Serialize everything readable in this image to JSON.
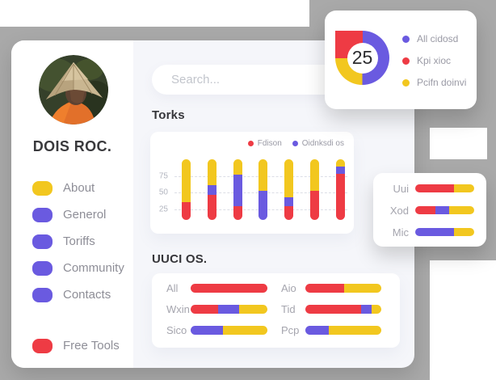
{
  "colors": {
    "red": "#ee3b44",
    "yellow": "#f2c71f",
    "purple": "#6a5ae0",
    "gray_backdrop": "#a9a9a9",
    "main_bg": "#f5f6fa",
    "card_bg": "#ffffff",
    "text_dark": "#36363a",
    "text_gray": "#9a9aa5"
  },
  "sidebar": {
    "profile_name": "DOIS ROC.",
    "avatar_alt": "person wearing conical hat",
    "items": [
      {
        "label": "About",
        "color": "yellow",
        "icon": "blob-icon"
      },
      {
        "label": "Generol",
        "color": "purple",
        "icon": "blob-icon"
      },
      {
        "label": "Toriffs",
        "color": "purple",
        "icon": "blob-icon"
      },
      {
        "label": "Community",
        "color": "purple",
        "icon": "blob-icon"
      },
      {
        "label": "Contacts",
        "color": "purple",
        "icon": "blob-icon"
      }
    ],
    "footer_item": {
      "label": "Free Tools",
      "color": "red",
      "icon": "blob-icon"
    }
  },
  "search": {
    "placeholder": "Search..."
  },
  "sections": {
    "torks_title": "Torks",
    "uuci_title": "UUCI OS."
  },
  "chart_data": [
    {
      "name": "torks-chart",
      "type": "bar",
      "stacked": true,
      "orientation": "vertical",
      "title": "Torks",
      "legend": [
        {
          "label": "Fdison",
          "color": "red"
        },
        {
          "label": "Oidnksdi os",
          "color": "purple"
        }
      ],
      "y_ticks": [
        75,
        50,
        25
      ],
      "grid": "dashed-horizontal",
      "bars": [
        {
          "segments": [
            [
              "red",
              30
            ],
            [
              "yellow",
              70
            ]
          ]
        },
        {
          "segments": [
            [
              "red",
              42
            ],
            [
              "purple",
              16
            ],
            [
              "yellow",
              42
            ]
          ]
        },
        {
          "segments": [
            [
              "red",
              23
            ],
            [
              "purple",
              52
            ],
            [
              "yellow",
              25
            ]
          ]
        },
        {
          "segments": [
            [
              "purple",
              48
            ],
            [
              "yellow",
              52
            ]
          ]
        },
        {
          "segments": [
            [
              "red",
              23
            ],
            [
              "purple",
              15
            ],
            [
              "yellow",
              62
            ]
          ]
        },
        {
          "segments": [
            [
              "red",
              48
            ],
            [
              "yellow",
              52
            ]
          ]
        },
        {
          "segments": [
            [
              "red",
              76
            ],
            [
              "purple",
              12
            ],
            [
              "yellow",
              12
            ]
          ]
        }
      ]
    },
    {
      "name": "donut-chart",
      "type": "pie",
      "donut": true,
      "center_value": "25",
      "slices": [
        {
          "label": "All cidosd",
          "color": "purple",
          "pct": 50
        },
        {
          "label": "Kpi xioc",
          "color": "red",
          "pct": 25
        },
        {
          "label": "Pcifn doinvi",
          "color": "yellow",
          "pct": 25
        }
      ],
      "visual_order": [
        [
          "purple",
          50
        ],
        [
          "yellow",
          25
        ],
        [
          "red",
          25
        ]
      ],
      "legend_position": "right"
    },
    {
      "name": "uuci-chart",
      "type": "bar",
      "stacked": true,
      "orientation": "horizontal",
      "title": "UUCI OS.",
      "columns": [
        {
          "rows": [
            {
              "label": "All",
              "segments": [
                [
                  "red",
                  100
                ]
              ]
            },
            {
              "label": "Wxin",
              "segments": [
                [
                  "red",
                  36
                ],
                [
                  "purple",
                  27
                ],
                [
                  "yellow",
                  37
                ]
              ]
            },
            {
              "label": "Sico",
              "segments": [
                [
                  "purple",
                  42
                ],
                [
                  "yellow",
                  58
                ]
              ]
            }
          ]
        },
        {
          "rows": [
            {
              "label": "Aio",
              "segments": [
                [
                  "red",
                  51
                ],
                [
                  "yellow",
                  49
                ]
              ]
            },
            {
              "label": "Tid",
              "segments": [
                [
                  "red",
                  73
                ],
                [
                  "purple",
                  14
                ],
                [
                  "yellow",
                  13
                ]
              ]
            },
            {
              "label": "Pcp",
              "segments": [
                [
                  "purple",
                  31
                ],
                [
                  "yellow",
                  69
                ]
              ]
            }
          ]
        }
      ]
    },
    {
      "name": "mini-chart",
      "type": "bar",
      "stacked": true,
      "orientation": "horizontal",
      "rows": [
        {
          "label": "Uui",
          "segments": [
            [
              "red",
              66
            ],
            [
              "yellow",
              34
            ]
          ]
        },
        {
          "label": "Xod",
          "segments": [
            [
              "red",
              34
            ],
            [
              "purple",
              23
            ],
            [
              "yellow",
              43
            ]
          ]
        },
        {
          "label": "Mic",
          "segments": [
            [
              "purple",
              66
            ],
            [
              "yellow",
              34
            ]
          ]
        }
      ]
    }
  ]
}
